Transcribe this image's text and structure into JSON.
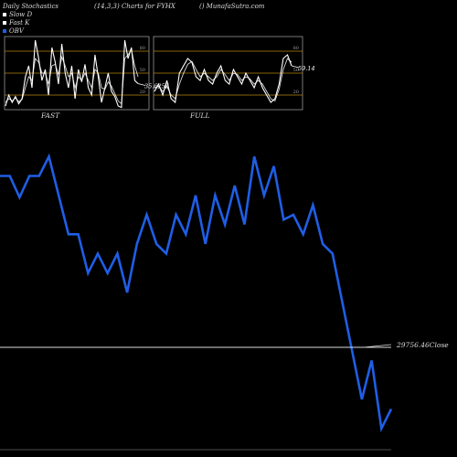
{
  "header": {
    "title": "Daily Stochastics",
    "params": "(14,3,3) Charts for FYHX",
    "source": "() MunafaSutra.com"
  },
  "legend": [
    {
      "label": "Slow  D",
      "color": "#ffffff"
    },
    {
      "label": "Fast K",
      "color": "#ffffff"
    },
    {
      "label": "OBV",
      "color": "#1f5ee6"
    }
  ],
  "colors": {
    "obv": "#1f5ee6",
    "stoch": "#ffffff",
    "level": "#b8860b",
    "panel_border": "#aaaaaa"
  },
  "chart_data": [
    {
      "type": "line",
      "title": "FAST",
      "ylim": [
        0,
        100
      ],
      "levels": [
        20,
        50,
        80
      ],
      "level_labels": [
        "80",
        "50",
        "20"
      ],
      "last_value_label": "35.6256",
      "series": [
        {
          "name": "Fast K",
          "values": [
            5,
            20,
            10,
            18,
            8,
            15,
            45,
            60,
            30,
            95,
            70,
            40,
            55,
            20,
            85,
            65,
            35,
            90,
            50,
            30,
            60,
            15,
            55,
            38,
            62,
            30,
            20,
            75,
            45,
            10,
            30,
            50,
            25,
            18,
            5,
            3,
            95,
            70,
            85,
            40,
            35.6
          ]
        },
        {
          "name": "Slow  D",
          "values": [
            10,
            15,
            12,
            16,
            11,
            14,
            30,
            45,
            40,
            70,
            65,
            50,
            50,
            35,
            60,
            62,
            48,
            72,
            60,
            45,
            50,
            30,
            45,
            40,
            50,
            40,
            30,
            55,
            50,
            30,
            28,
            38,
            32,
            22,
            12,
            8,
            70,
            75,
            82,
            60,
            45
          ]
        }
      ]
    },
    {
      "type": "line",
      "title": "FULL",
      "ylim": [
        0,
        100
      ],
      "levels": [
        20,
        50,
        80
      ],
      "level_labels": [
        "80",
        "50",
        "20"
      ],
      "last_value_label": "59.14",
      "series": [
        {
          "name": "Fast K",
          "values": [
            25,
            35,
            20,
            40,
            15,
            10,
            50,
            60,
            70,
            65,
            45,
            40,
            55,
            40,
            35,
            50,
            60,
            40,
            35,
            55,
            45,
            35,
            50,
            40,
            30,
            45,
            30,
            20,
            10,
            15,
            35,
            70,
            75,
            60
          ]
        },
        {
          "name": "Slow  D",
          "values": [
            30,
            32,
            25,
            32,
            20,
            15,
            35,
            50,
            62,
            66,
            55,
            45,
            50,
            45,
            40,
            45,
            55,
            48,
            40,
            50,
            48,
            40,
            45,
            42,
            35,
            40,
            35,
            25,
            15,
            12,
            28,
            55,
            70,
            65
          ]
        }
      ]
    },
    {
      "type": "line",
      "title": "OBV",
      "current_label": "29756.46Close",
      "series": [
        {
          "name": "OBV",
          "values": [
            280,
            280,
            258,
            280,
            280,
            300,
            260,
            220,
            220,
            180,
            200,
            180,
            200,
            160,
            210,
            240,
            210,
            200,
            240,
            220,
            260,
            210,
            260,
            230,
            270,
            230,
            300,
            260,
            290,
            235,
            240,
            220,
            250,
            210,
            200,
            150,
            100,
            50,
            90,
            20,
            40
          ]
        }
      ]
    }
  ]
}
